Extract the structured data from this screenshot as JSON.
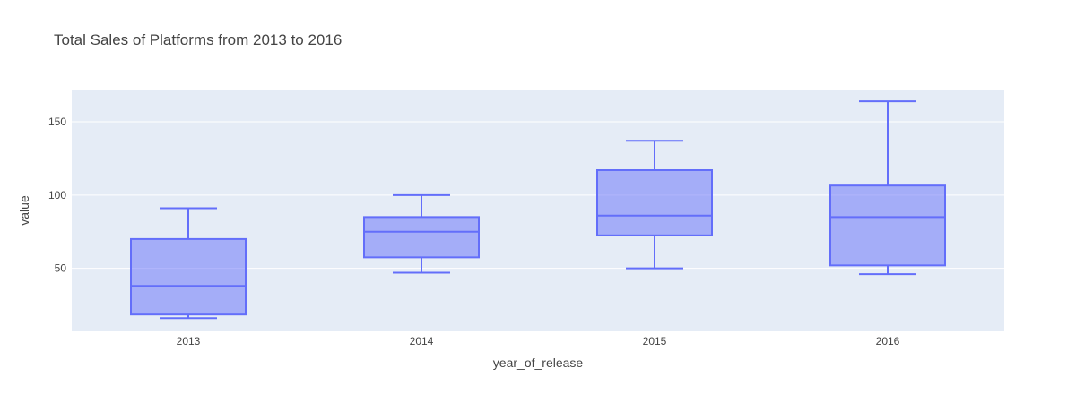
{
  "chart_data": {
    "type": "box",
    "title": "Total Sales of Platforms from 2013 to 2016",
    "xlabel": "year_of_release",
    "ylabel": "value",
    "categories": [
      "2013",
      "2014",
      "2015",
      "2016"
    ],
    "ylim": [
      7,
      172
    ],
    "yticks": [
      50,
      100,
      150
    ],
    "grid": true,
    "series": [
      {
        "boxes": [
          {
            "category": "2013",
            "min": 16,
            "q1": 18.5,
            "median": 38,
            "q3": 70,
            "max": 91
          },
          {
            "category": "2014",
            "min": 47,
            "q1": 57.5,
            "median": 75,
            "q3": 85,
            "max": 100
          },
          {
            "category": "2015",
            "min": 50,
            "q1": 72.5,
            "median": 86,
            "q3": 117,
            "max": 137
          },
          {
            "category": "2016",
            "min": 46,
            "q1": 52,
            "median": 85,
            "q3": 106.5,
            "max": 164
          }
        ]
      }
    ],
    "colors": {
      "box_line": "#636efa",
      "box_fill": "rgba(99,110,250,0.5)",
      "plot_bg": "#e5ecf6",
      "grid": "#ffffff"
    }
  }
}
